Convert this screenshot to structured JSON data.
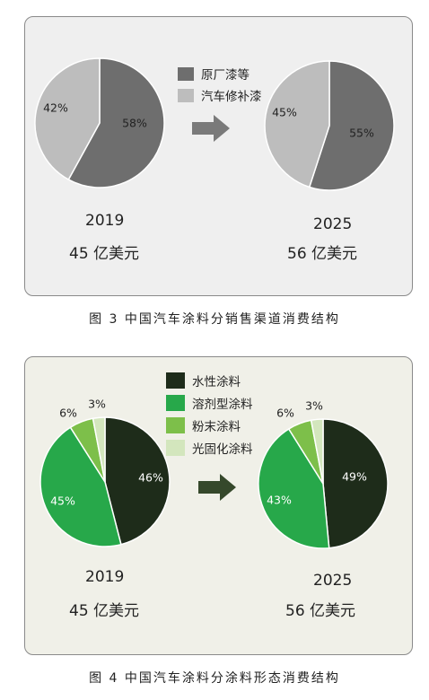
{
  "figures": [
    {
      "caption": "图 3  中国汽车涂料分销售渠道消费结构",
      "legend": [
        {
          "label": "原厂漆等",
          "color": "#6e6e6e"
        },
        {
          "label": "汽车修补漆",
          "color": "#bdbdbd"
        }
      ],
      "charts": [
        {
          "year": "2019",
          "amount": "45 亿美元"
        },
        {
          "year": "2025",
          "amount": "56 亿美元"
        }
      ]
    },
    {
      "caption": "图 4  中国汽车涂料分涂料形态消费结构",
      "legend": [
        {
          "label": "水性涂料",
          "color": "#1e2c1a"
        },
        {
          "label": "溶剂型涂料",
          "color": "#27a84a"
        },
        {
          "label": "粉末涂料",
          "color": "#7dbf4a"
        },
        {
          "label": "光固化涂料",
          "color": "#d3e6bd"
        }
      ],
      "charts": [
        {
          "year": "2019",
          "amount": "45 亿美元"
        },
        {
          "year": "2025",
          "amount": "56 亿美元"
        }
      ]
    }
  ],
  "chart_data": [
    {
      "type": "pie",
      "year": "2019",
      "slices": [
        {
          "label": "原厂漆等",
          "value": 58,
          "display": "58%",
          "color": "#6e6e6e"
        },
        {
          "label": "汽车修补漆",
          "value": 42,
          "display": "42%",
          "color": "#bdbdbd"
        }
      ]
    },
    {
      "type": "pie",
      "year": "2025",
      "slices": [
        {
          "label": "原厂漆等",
          "value": 55,
          "display": "55%",
          "color": "#6e6e6e"
        },
        {
          "label": "汽车修补漆",
          "value": 45,
          "display": "45%",
          "color": "#bdbdbd"
        }
      ]
    },
    {
      "type": "pie",
      "year": "2019",
      "slices": [
        {
          "label": "水性涂料",
          "value": 46,
          "display": "46%",
          "color": "#1e2c1a"
        },
        {
          "label": "溶剂型涂料",
          "value": 45,
          "display": "45%",
          "color": "#27a84a"
        },
        {
          "label": "粉末涂料",
          "value": 6,
          "display": "6%",
          "color": "#7dbf4a"
        },
        {
          "label": "光固化涂料",
          "value": 3,
          "display": "3%",
          "color": "#d3e6bd"
        }
      ]
    },
    {
      "type": "pie",
      "year": "2025",
      "slices": [
        {
          "label": "水性涂料",
          "value": 49,
          "display": "49%",
          "color": "#1e2c1a"
        },
        {
          "label": "溶剂型涂料",
          "value": 43,
          "display": "43%",
          "color": "#27a84a"
        },
        {
          "label": "粉末涂料",
          "value": 6,
          "display": "6%",
          "color": "#7dbf4a"
        },
        {
          "label": "光固化涂料",
          "value": 3,
          "display": "3%",
          "color": "#d3e6bd"
        }
      ]
    }
  ],
  "arrows": [
    {
      "color": "#7a7a7a"
    },
    {
      "color": "#35482b"
    }
  ]
}
